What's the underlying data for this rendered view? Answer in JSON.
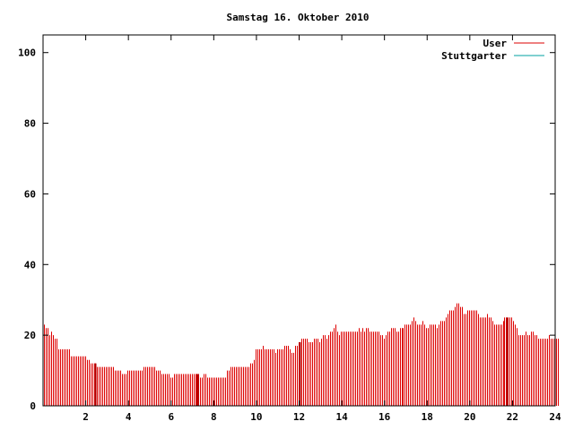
{
  "chart_data": {
    "type": "bar",
    "title": "Samstag 16. Oktober 2010",
    "xlabel": "",
    "ylabel": "",
    "xlim": [
      0,
      24
    ],
    "ylim": [
      0,
      105
    ],
    "x_ticks": [
      2,
      4,
      6,
      8,
      10,
      12,
      14,
      16,
      18,
      20,
      22,
      24
    ],
    "y_ticks": [
      0,
      20,
      40,
      60,
      80,
      100
    ],
    "grid": false,
    "legend_position": "top-right",
    "series": [
      {
        "name": "User",
        "color": "#dd0000",
        "interval_minutes": 5,
        "values": [
          23,
          22,
          22,
          20,
          21,
          20,
          19,
          19,
          16,
          16,
          16,
          16,
          16,
          16,
          16,
          14,
          14,
          14,
          14,
          14,
          14,
          14,
          14,
          14,
          13,
          13,
          12,
          12,
          12,
          12,
          11,
          11,
          11,
          11,
          11,
          11,
          11,
          11,
          11,
          11,
          10,
          10,
          10,
          10,
          9,
          9,
          9,
          10,
          10,
          10,
          10,
          10,
          10,
          10,
          10,
          10,
          11,
          11,
          11,
          11,
          11,
          11,
          11,
          10,
          10,
          10,
          9,
          9,
          9,
          9,
          9,
          8,
          8,
          9,
          9,
          9,
          9,
          9,
          9,
          9,
          9,
          9,
          9,
          9,
          9,
          9,
          9,
          9,
          8,
          8,
          9,
          9,
          8,
          8,
          8,
          8,
          8,
          8,
          8,
          8,
          8,
          8,
          8,
          10,
          10,
          11,
          11,
          11,
          11,
          11,
          11,
          11,
          11,
          11,
          11,
          11,
          12,
          12,
          13,
          16,
          16,
          16,
          16,
          17,
          16,
          16,
          16,
          16,
          16,
          16,
          15,
          16,
          16,
          16,
          16,
          17,
          17,
          17,
          16,
          15,
          15,
          17,
          17,
          18,
          18,
          19,
          19,
          19,
          19,
          18,
          18,
          18,
          19,
          19,
          19,
          18,
          19,
          20,
          20,
          19,
          20,
          21,
          21,
          22,
          23,
          21,
          20,
          21,
          21,
          21,
          21,
          21,
          21,
          21,
          21,
          21,
          21,
          22,
          21,
          22,
          21,
          22,
          22,
          21,
          21,
          21,
          21,
          21,
          21,
          20,
          20,
          19,
          20,
          21,
          21,
          22,
          22,
          22,
          21,
          21,
          22,
          22,
          22,
          23,
          23,
          23,
          23,
          24,
          25,
          24,
          23,
          23,
          23,
          24,
          23,
          22,
          22,
          23,
          23,
          23,
          23,
          22,
          23,
          24,
          24,
          24,
          25,
          26,
          27,
          27,
          27,
          28,
          29,
          29,
          28,
          28,
          26,
          26,
          27,
          27,
          27,
          27,
          27,
          27,
          26,
          25,
          25,
          25,
          25,
          26,
          25,
          25,
          24,
          23,
          23,
          23,
          23,
          23,
          24,
          25,
          25,
          25,
          25,
          25,
          24,
          23,
          22,
          20,
          20,
          20,
          20,
          21,
          20,
          20,
          21,
          21,
          20,
          20,
          19,
          19,
          19,
          19,
          19,
          19,
          20,
          19,
          19,
          19,
          19,
          19
        ],
        "highlight_hours": [
          2.42,
          7.25,
          12.0,
          21.75
        ]
      },
      {
        "name": "Stuttgarter",
        "color": "#00a0a0",
        "values": []
      }
    ]
  }
}
